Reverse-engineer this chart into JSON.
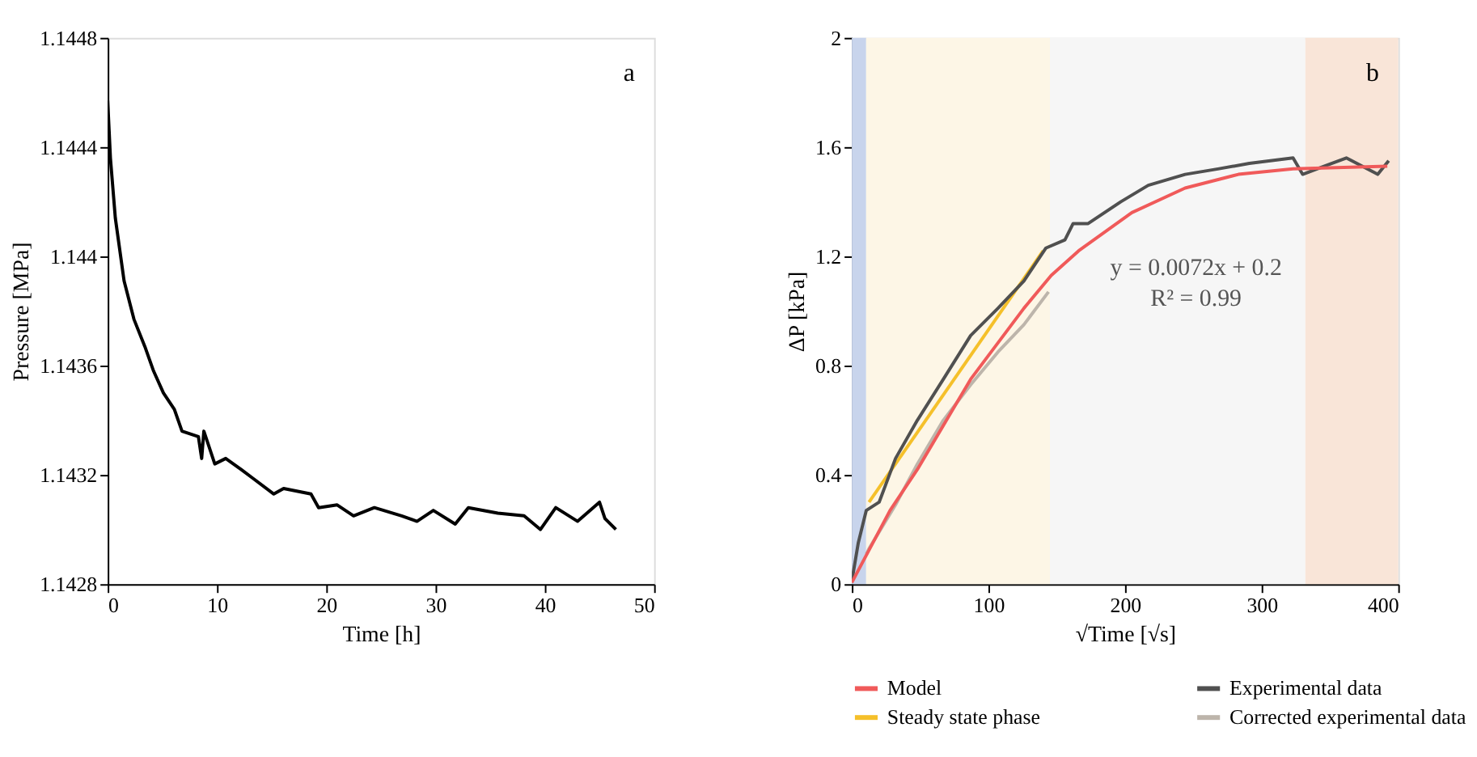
{
  "chart_data": [
    {
      "type": "line",
      "xlabel": "Time [h]",
      "ylabel": "Pressure [MPa]",
      "xlim": [
        0,
        50
      ],
      "xticks": [
        0,
        10,
        20,
        30,
        40,
        50
      ],
      "ylim": [
        1.1428,
        1.1448
      ],
      "yticks": [
        1.1428,
        1.1432,
        1.1436,
        1.144,
        1.1444,
        1.1448
      ],
      "grid": false,
      "legend": false,
      "annotations": [
        "a"
      ],
      "series": [
        {
          "color": "#000000",
          "x": [
            0,
            0.25,
            0.7,
            1.5,
            2.4,
            3.4,
            4.2,
            5.1,
            6.1,
            6.8,
            8.3,
            8.6,
            8.8,
            9.8,
            10.8,
            12.2,
            13.2,
            15.2,
            16.1,
            18.6,
            19.3,
            21,
            22.5,
            24.4,
            26.9,
            28.3,
            29.8,
            31.8,
            33,
            35.7,
            38.1,
            39.6,
            41,
            43,
            45,
            45.5,
            46.5
          ],
          "values": [
            1.14457,
            1.14436,
            1.14414,
            1.14391,
            1.14377,
            1.14367,
            1.14358,
            1.1435,
            1.14344,
            1.14336,
            1.14334,
            1.14326,
            1.14336,
            1.14324,
            1.14326,
            1.14322,
            1.14319,
            1.14313,
            1.14315,
            1.14313,
            1.14308,
            1.14309,
            1.14305,
            1.14308,
            1.14305,
            1.14303,
            1.14307,
            1.14302,
            1.14308,
            1.14306,
            1.14305,
            1.143,
            1.14308,
            1.14303,
            1.1431,
            1.14304,
            1.143
          ]
        }
      ]
    },
    {
      "type": "line",
      "xlabel": "√Time [√s]",
      "ylabel": "ΔP [kPa]",
      "xlim": [
        0,
        400
      ],
      "xticks": [
        0,
        100,
        200,
        300,
        400
      ],
      "ylim": [
        0,
        2
      ],
      "yticks": [
        0,
        0.4,
        0.8,
        1.2,
        1.6,
        2
      ],
      "grid": false,
      "legend": "bottom",
      "annotations": [
        "b",
        "y = 0.0072x + 0.2",
        "R² = 0.99"
      ],
      "bands": [
        {
          "axis": "x",
          "from": 0,
          "to": 10.5,
          "color": "#c8d4ec"
        },
        {
          "axis": "x",
          "from": 10.5,
          "to": 145,
          "color": "#fdf6e6"
        },
        {
          "axis": "x",
          "from": 145,
          "to": 332,
          "color": "#f6f6f6"
        },
        {
          "axis": "x",
          "from": 332,
          "to": 400,
          "color": "#f9e5d8"
        }
      ],
      "series": [
        {
          "name": "Model",
          "color": "#f05a5a",
          "x": [
            0,
            28,
            48,
            87,
            126,
            146,
            166,
            205,
            244,
            283,
            323,
            392
          ],
          "values": [
            0.006,
            0.27,
            0.42,
            0.75,
            1.01,
            1.13,
            1.22,
            1.36,
            1.45,
            1.5,
            1.52,
            1.53
          ]
        },
        {
          "name": "Experimental data",
          "color": "#505050",
          "x": [
            0,
            4.7,
            10.6,
            20,
            32,
            48,
            67,
            87,
            107,
            126,
            142,
            156,
            162,
            173,
            197,
            217,
            244,
            268,
            291,
            323,
            330,
            346,
            362,
            385,
            393
          ],
          "values": [
            0.01,
            0.15,
            0.27,
            0.3,
            0.46,
            0.6,
            0.75,
            0.91,
            1.01,
            1.11,
            1.23,
            1.26,
            1.32,
            1.32,
            1.4,
            1.46,
            1.5,
            1.52,
            1.54,
            1.56,
            1.5,
            1.53,
            1.56,
            1.5,
            1.55
          ]
        },
        {
          "name": "Steady state phase",
          "color": "#f5c02a",
          "x": [
            12.6,
            140
          ],
          "values": [
            0.3,
            1.22
          ]
        },
        {
          "name": "Corrected experimental data",
          "color": "#bdb5ab",
          "x": [
            10.6,
            12.6,
            32,
            48,
            67,
            87,
            107,
            126,
            144
          ],
          "values": [
            0.11,
            0.13,
            0.29,
            0.44,
            0.6,
            0.73,
            0.85,
            0.95,
            1.07
          ]
        }
      ]
    }
  ]
}
